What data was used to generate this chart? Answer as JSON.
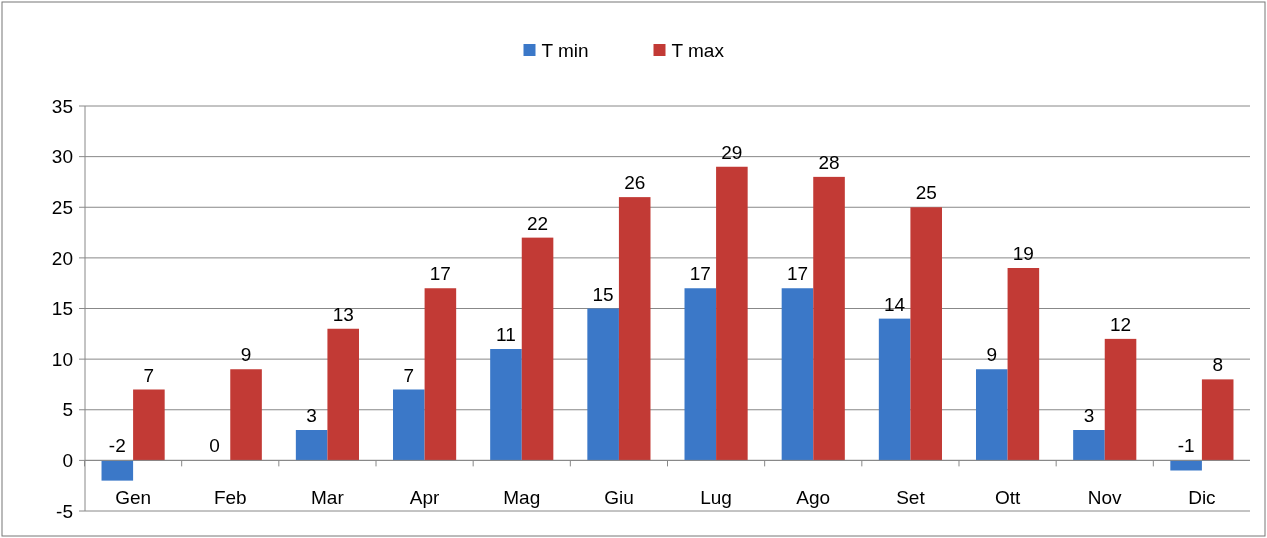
{
  "chart_data": {
    "type": "bar",
    "categories": [
      "Gen",
      "Feb",
      "Mar",
      "Apr",
      "Mag",
      "Giu",
      "Lug",
      "Ago",
      "Set",
      "Ott",
      "Nov",
      "Dic"
    ],
    "series": [
      {
        "name": "T min",
        "color": "#3b78c8",
        "values": [
          -2,
          0,
          3,
          7,
          11,
          15,
          17,
          17,
          14,
          9,
          3,
          -1
        ]
      },
      {
        "name": "T max",
        "color": "#c23a35",
        "values": [
          7,
          9,
          13,
          17,
          22,
          26,
          29,
          28,
          25,
          19,
          12,
          8
        ]
      }
    ],
    "ylim": [
      -5,
      35
    ],
    "yticks": [
      -5,
      0,
      5,
      10,
      15,
      20,
      25,
      30,
      35
    ],
    "grid": "y",
    "legend": "top",
    "data_labels": true
  }
}
